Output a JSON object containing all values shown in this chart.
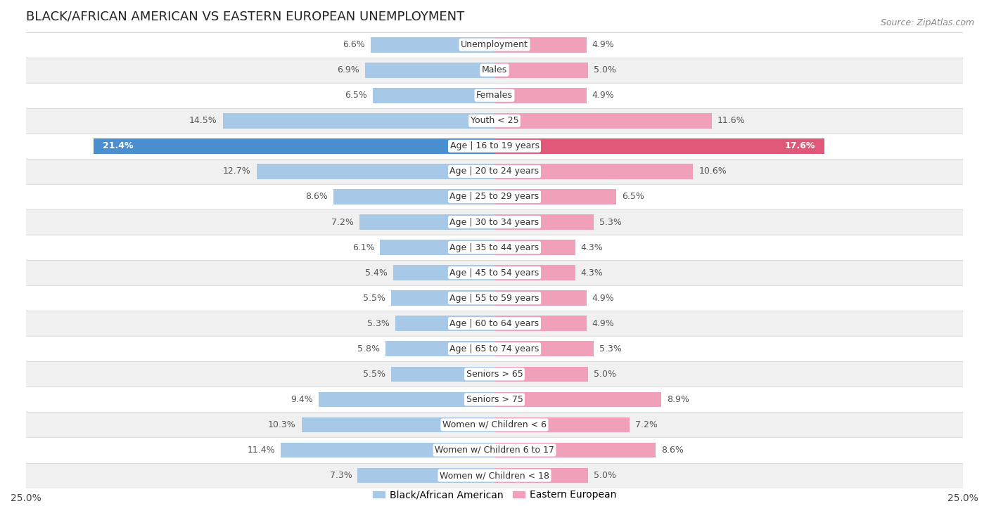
{
  "title": "BLACK/AFRICAN AMERICAN VS EASTERN EUROPEAN UNEMPLOYMENT",
  "source": "Source: ZipAtlas.com",
  "categories": [
    "Unemployment",
    "Males",
    "Females",
    "Youth < 25",
    "Age | 16 to 19 years",
    "Age | 20 to 24 years",
    "Age | 25 to 29 years",
    "Age | 30 to 34 years",
    "Age | 35 to 44 years",
    "Age | 45 to 54 years",
    "Age | 55 to 59 years",
    "Age | 60 to 64 years",
    "Age | 65 to 74 years",
    "Seniors > 65",
    "Seniors > 75",
    "Women w/ Children < 6",
    "Women w/ Children 6 to 17",
    "Women w/ Children < 18"
  ],
  "left_values": [
    6.6,
    6.9,
    6.5,
    14.5,
    21.4,
    12.7,
    8.6,
    7.2,
    6.1,
    5.4,
    5.5,
    5.3,
    5.8,
    5.5,
    9.4,
    10.3,
    11.4,
    7.3
  ],
  "right_values": [
    4.9,
    5.0,
    4.9,
    11.6,
    17.6,
    10.6,
    6.5,
    5.3,
    4.3,
    4.3,
    4.9,
    4.9,
    5.3,
    5.0,
    8.9,
    7.2,
    8.6,
    5.0
  ],
  "left_color": "#a8c8e8",
  "right_color": "#f0a0b8",
  "left_highlight_color": "#4a90d0",
  "right_highlight_color": "#e05878",
  "highlight_row": 4,
  "background_color": "#ffffff",
  "row_bg_light": "#ffffff",
  "row_bg_dark": "#f0f0f0",
  "row_border_color": "#dddddd",
  "axis_limit": 25.0,
  "bar_height": 0.6,
  "label_fontsize": 9.0,
  "title_fontsize": 13,
  "legend_label_left": "Black/African American",
  "legend_label_right": "Eastern European"
}
